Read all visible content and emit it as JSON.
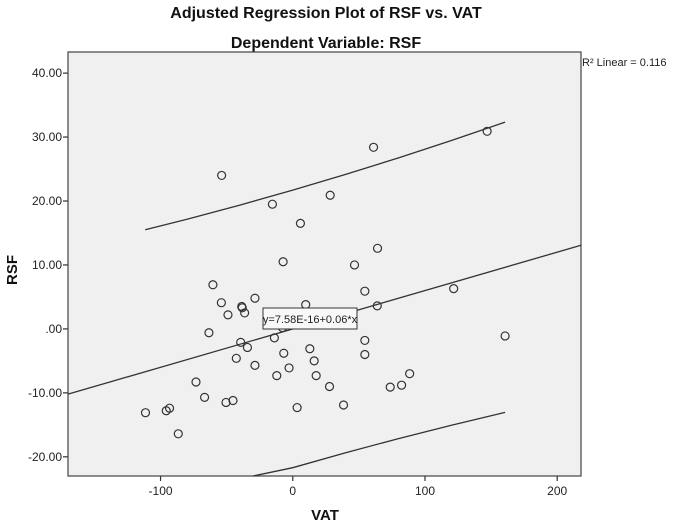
{
  "chart_data": {
    "type": "scatter",
    "title": "Adjusted Regression Plot of RSF vs. VAT",
    "subtitle": "Dependent Variable: RSF",
    "xlabel": "VAT",
    "ylabel": "RSF",
    "xlim": [
      -170,
      218
    ],
    "ylim": [
      -23,
      43.3
    ],
    "xticks": [
      -100,
      0,
      100,
      200
    ],
    "xtick_labels": [
      "-100",
      "0",
      "100",
      "200"
    ],
    "yticks": [
      40,
      30,
      20,
      10,
      0,
      -10,
      -20
    ],
    "ytick_labels": [
      "40.00",
      "30.00",
      "20.00",
      "10.00",
      ".00",
      "-10.00",
      "-20.00"
    ],
    "grid": false,
    "background_color": "#f0f0f0",
    "marker": "open-circle",
    "points": [
      [
        -53.8,
        24.0
      ],
      [
        -15.4,
        19.5
      ],
      [
        5.8,
        16.5
      ],
      [
        -7.3,
        10.5
      ],
      [
        -60.4,
        6.9
      ],
      [
        -54.0,
        4.1
      ],
      [
        -28.6,
        4.8
      ],
      [
        -38.6,
        3.5
      ],
      [
        -38.2,
        3.3
      ],
      [
        -49.0,
        2.2
      ],
      [
        -36.4,
        2.5
      ],
      [
        9.8,
        3.8
      ],
      [
        -63.4,
        -0.6
      ],
      [
        -39.4,
        -2.1
      ],
      [
        -34.3,
        -2.9
      ],
      [
        -42.7,
        -4.6
      ],
      [
        -28.6,
        -5.7
      ],
      [
        -13.9,
        -1.4
      ],
      [
        -7.8,
        0.2
      ],
      [
        -6.8,
        -3.8
      ],
      [
        -2.8,
        -6.1
      ],
      [
        -12.1,
        -7.3
      ],
      [
        12.9,
        -3.1
      ],
      [
        16.2,
        -5.0
      ],
      [
        17.7,
        -7.3
      ],
      [
        3.3,
        -12.3
      ],
      [
        -73.2,
        -8.3
      ],
      [
        -66.7,
        -10.7
      ],
      [
        -50.5,
        -11.5
      ],
      [
        -45.2,
        -11.2
      ],
      [
        -111.4,
        -13.1
      ],
      [
        -95.7,
        -12.8
      ],
      [
        -93.2,
        -12.4
      ],
      [
        -86.6,
        -16.4
      ],
      [
        64.1,
        12.6
      ],
      [
        46.7,
        10.0
      ],
      [
        54.5,
        5.9
      ],
      [
        121.7,
        6.3
      ],
      [
        160.6,
        -1.1
      ],
      [
        63.9,
        3.6
      ],
      [
        54.5,
        -1.8
      ],
      [
        54.5,
        -4.0
      ],
      [
        27.8,
        -9.0
      ],
      [
        38.4,
        -11.9
      ],
      [
        73.7,
        -9.1
      ],
      [
        82.3,
        -8.8
      ],
      [
        88.4,
        -7.0
      ],
      [
        61.1,
        28.4
      ],
      [
        147.0,
        30.9
      ],
      [
        28.3,
        20.9
      ]
    ],
    "fit_line": {
      "intercept": 0,
      "slope": 0.06,
      "label": "y=7.58E-16+0.06*x"
    },
    "upper_band": [
      [
        -111.6,
        15.5
      ],
      [
        -80,
        17.15
      ],
      [
        -40,
        19.36
      ],
      [
        0,
        21.7
      ],
      [
        40,
        24.16
      ],
      [
        80,
        26.75
      ],
      [
        120,
        29.47
      ],
      [
        160.6,
        32.33
      ]
    ],
    "lower_band": [
      [
        -30,
        -23.54
      ],
      [
        0,
        -21.7
      ],
      [
        40,
        -19.36
      ],
      [
        80,
        -17.15
      ],
      [
        120,
        -15.07
      ],
      [
        160.6,
        -13.05
      ]
    ],
    "r2_label": "R² Linear = 0.116"
  }
}
